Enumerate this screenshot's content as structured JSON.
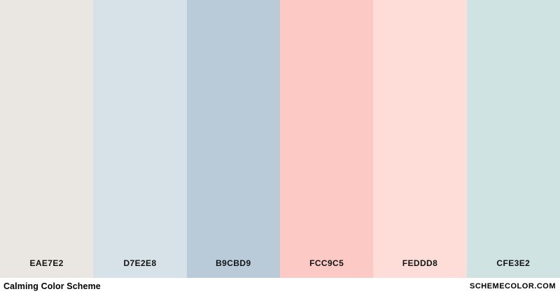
{
  "palette": {
    "title": "Calming Color Scheme",
    "site_label": "SCHEMECOLOR.COM",
    "label_color": "#121212",
    "footer_background": "#ffffff",
    "swatches": [
      {
        "hex_label": "EAE7E2",
        "color": "#EAE7E2"
      },
      {
        "hex_label": "D7E2E8",
        "color": "#D7E2E8"
      },
      {
        "hex_label": "B9CBD9",
        "color": "#B9CBD9"
      },
      {
        "hex_label": "FCC9C5",
        "color": "#FCC9C5"
      },
      {
        "hex_label": "FEDDD8",
        "color": "#FEDDD8"
      },
      {
        "hex_label": "CFE3E2",
        "color": "#CFE3E2"
      }
    ]
  }
}
